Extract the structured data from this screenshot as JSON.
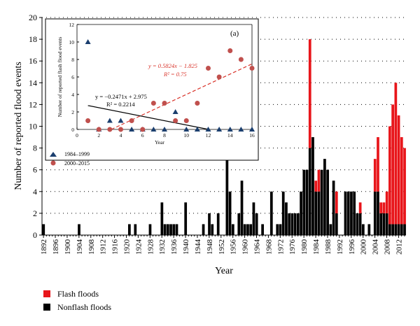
{
  "chart_data": [
    {
      "type": "bar",
      "stacked": true,
      "xlabel": "Year",
      "ylabel": "Number of reported flood events",
      "ylim": [
        0,
        20
      ],
      "yticks": [
        0,
        2,
        4,
        6,
        8,
        10,
        12,
        14,
        16,
        18,
        20
      ],
      "xtick_labels": [
        "1892",
        "1896",
        "1900",
        "1904",
        "1908",
        "1912",
        "1916",
        "1920",
        "1924",
        "1928",
        "1932",
        "1936",
        "1940",
        "1944",
        "1948",
        "1952",
        "1956",
        "1960",
        "1964",
        "1968",
        "1972",
        "1976",
        "1980",
        "1984",
        "1988",
        "1992",
        "1996",
        "2000",
        "2004",
        "2008",
        "2012"
      ],
      "grid": "dotted horizontal",
      "legend": {
        "position": "bottom-left",
        "entries": [
          "Flash floods",
          "Nonflash floods"
        ]
      },
      "colors": {
        "flash": "#e8161b",
        "nonflash": "#000000"
      },
      "x_start": 1892,
      "x_end": 2014,
      "series": [
        {
          "name": "Nonflash floods",
          "values": [
            1,
            0,
            0,
            0,
            0,
            0,
            0,
            0,
            0,
            0,
            0,
            0,
            1,
            0,
            0,
            0,
            0,
            0,
            0,
            0,
            0,
            0,
            0,
            0,
            0,
            0,
            0,
            0,
            0,
            1,
            0,
            1,
            0,
            0,
            0,
            0,
            1,
            0,
            0,
            0,
            3,
            1,
            1,
            1,
            1,
            1,
            0,
            0,
            3,
            0,
            0,
            0,
            0,
            0,
            1,
            0,
            2,
            1,
            0,
            2,
            0,
            0,
            7,
            4,
            1,
            0,
            2,
            5,
            1,
            1,
            1,
            3,
            2,
            0,
            1,
            0,
            0,
            4,
            0,
            1,
            1,
            4,
            3,
            2,
            2,
            2,
            2,
            4,
            6,
            6,
            8,
            9,
            4,
            4,
            6,
            7,
            6,
            1,
            5,
            2,
            0,
            0,
            4,
            4,
            4,
            4,
            2,
            2,
            1,
            0,
            1,
            0,
            4,
            4,
            2,
            2,
            2,
            1,
            1,
            1,
            1,
            1,
            1
          ]
        },
        {
          "name": "Flash floods",
          "values": [
            0,
            0,
            0,
            0,
            0,
            0,
            0,
            0,
            0,
            0,
            0,
            0,
            0,
            0,
            0,
            0,
            0,
            0,
            0,
            0,
            0,
            0,
            0,
            0,
            0,
            0,
            0,
            0,
            0,
            0,
            0,
            0,
            0,
            0,
            0,
            0,
            0,
            0,
            0,
            0,
            0,
            0,
            0,
            0,
            0,
            0,
            0,
            0,
            0,
            0,
            0,
            0,
            0,
            0,
            0,
            0,
            0,
            0,
            0,
            0,
            0,
            0,
            0,
            0,
            0,
            0,
            0,
            0,
            0,
            0,
            0,
            0,
            0,
            0,
            0,
            0,
            0,
            0,
            0,
            0,
            0,
            0,
            0,
            0,
            0,
            0,
            0,
            0,
            0,
            0,
            10,
            0,
            1,
            2,
            0,
            0,
            0,
            0,
            0,
            2,
            0,
            0,
            0,
            0,
            0,
            0,
            0,
            1,
            0,
            0,
            0,
            0,
            3,
            5,
            1,
            1,
            2,
            9,
            11,
            13,
            10,
            8,
            7
          ]
        }
      ]
    },
    {
      "type": "scatter",
      "panel_label": "(a)",
      "xlabel": "Year",
      "ylabel": "Number of reported flash flood events",
      "xlim": [
        0,
        16
      ],
      "ylim": [
        0,
        12
      ],
      "xticks": [
        0,
        2,
        4,
        6,
        8,
        10,
        12,
        14,
        16
      ],
      "yticks": [
        0,
        2,
        4,
        6,
        8,
        10,
        12
      ],
      "legend": {
        "position": "bottom-left",
        "entries": [
          "1984–1999",
          "2000–2015"
        ]
      },
      "series": [
        {
          "name": "1984–1999",
          "marker": "triangle",
          "color": "#1a3e6e",
          "points": [
            [
              1,
              10
            ],
            [
              2,
              0
            ],
            [
              3,
              1
            ],
            [
              4,
              1
            ],
            [
              5,
              0
            ],
            [
              6,
              0
            ],
            [
              7,
              0
            ],
            [
              8,
              0
            ],
            [
              9,
              2
            ],
            [
              10,
              0
            ],
            [
              11,
              0
            ],
            [
              12,
              0
            ],
            [
              13,
              0
            ],
            [
              14,
              0
            ],
            [
              15,
              0
            ],
            [
              16,
              0
            ]
          ]
        },
        {
          "name": "2000–2015",
          "marker": "circle",
          "color": "#c0504d",
          "points": [
            [
              1,
              1
            ],
            [
              2,
              0
            ],
            [
              3,
              0
            ],
            [
              4,
              0
            ],
            [
              5,
              1
            ],
            [
              6,
              0
            ],
            [
              7,
              3
            ],
            [
              8,
              3
            ],
            [
              9,
              1
            ],
            [
              10,
              1
            ],
            [
              11,
              3
            ],
            [
              12,
              7
            ],
            [
              13,
              6
            ],
            [
              14,
              9
            ],
            [
              15,
              8
            ],
            [
              16,
              7
            ]
          ]
        }
      ],
      "trendlines": [
        {
          "series": "1984–1999",
          "slope": -0.2471,
          "intercept": 2.975,
          "equation": "y = −0.2471x + 2.975",
          "r2": "R² = 0.2214",
          "color": "#000000",
          "style": "solid"
        },
        {
          "series": "2000–2015",
          "slope": 0.5824,
          "intercept": -1.825,
          "equation": "y = 0.5824x − 1.825",
          "r2": "R² = 0.75",
          "color": "#d9342b",
          "style": "dashed"
        }
      ]
    }
  ]
}
